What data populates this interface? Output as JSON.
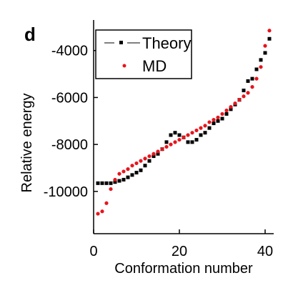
{
  "panel_label": "d",
  "colors": {
    "theory": "#000000",
    "md": "#e8141c",
    "axis": "#000000"
  },
  "chart_data": {
    "type": "scatter",
    "xlabel": "Conformation number",
    "ylabel": "Relative energy",
    "xlim": [
      0,
      42
    ],
    "ylim": [
      -11800,
      -2700
    ],
    "xticks": [
      0,
      20,
      40
    ],
    "xtick_labels": [
      "0",
      "20",
      "40"
    ],
    "yticks": [
      -10000,
      -8000,
      -6000,
      -4000
    ],
    "ytick_labels": [
      "-10000",
      "-8000",
      "-6000",
      "-4000"
    ],
    "legend": {
      "placement": "top-left",
      "entries": [
        "Theory",
        "MD"
      ]
    },
    "grid": false,
    "series": [
      {
        "name": "Theory",
        "marker": "square",
        "color": "#000000",
        "x": [
          1,
          2,
          3,
          4,
          5,
          6,
          7,
          8,
          9,
          10,
          11,
          12,
          13,
          14,
          15,
          16,
          17,
          18,
          19,
          20,
          21,
          22,
          23,
          24,
          25,
          26,
          27,
          28,
          29,
          30,
          31,
          32,
          33,
          34,
          35,
          36,
          37,
          38,
          39,
          40,
          41
        ],
        "y": [
          -9650,
          -9650,
          -9650,
          -9650,
          -9600,
          -9550,
          -9500,
          -9400,
          -9300,
          -9200,
          -9100,
          -8900,
          -8700,
          -8500,
          -8400,
          -8200,
          -7900,
          -7600,
          -7500,
          -7600,
          -7700,
          -7900,
          -7900,
          -7800,
          -7600,
          -7500,
          -7300,
          -7100,
          -7000,
          -6900,
          -6700,
          -6500,
          -6300,
          -6100,
          -5700,
          -5300,
          -5200,
          -4800,
          -4400,
          -4100,
          -3500
        ]
      },
      {
        "name": "MD",
        "marker": "circle",
        "color": "#e8141c",
        "x": [
          1,
          2,
          3,
          4,
          5,
          6,
          7,
          8,
          9,
          10,
          11,
          12,
          13,
          14,
          15,
          16,
          17,
          18,
          19,
          20,
          21,
          22,
          23,
          24,
          25,
          26,
          27,
          28,
          29,
          30,
          31,
          32,
          33,
          34,
          35,
          36,
          37,
          38,
          39,
          40,
          41
        ],
        "y": [
          -10950,
          -10850,
          -10500,
          -9900,
          -9500,
          -9250,
          -9150,
          -9050,
          -8900,
          -8800,
          -8700,
          -8600,
          -8500,
          -8400,
          -8300,
          -8200,
          -8100,
          -8000,
          -7900,
          -7800,
          -7700,
          -7600,
          -7500,
          -7400,
          -7300,
          -7200,
          -7050,
          -6950,
          -6850,
          -6700,
          -6550,
          -6400,
          -6250,
          -6100,
          -5950,
          -5800,
          -5550,
          -5200,
          -4700,
          -3800,
          -3150
        ]
      }
    ]
  }
}
